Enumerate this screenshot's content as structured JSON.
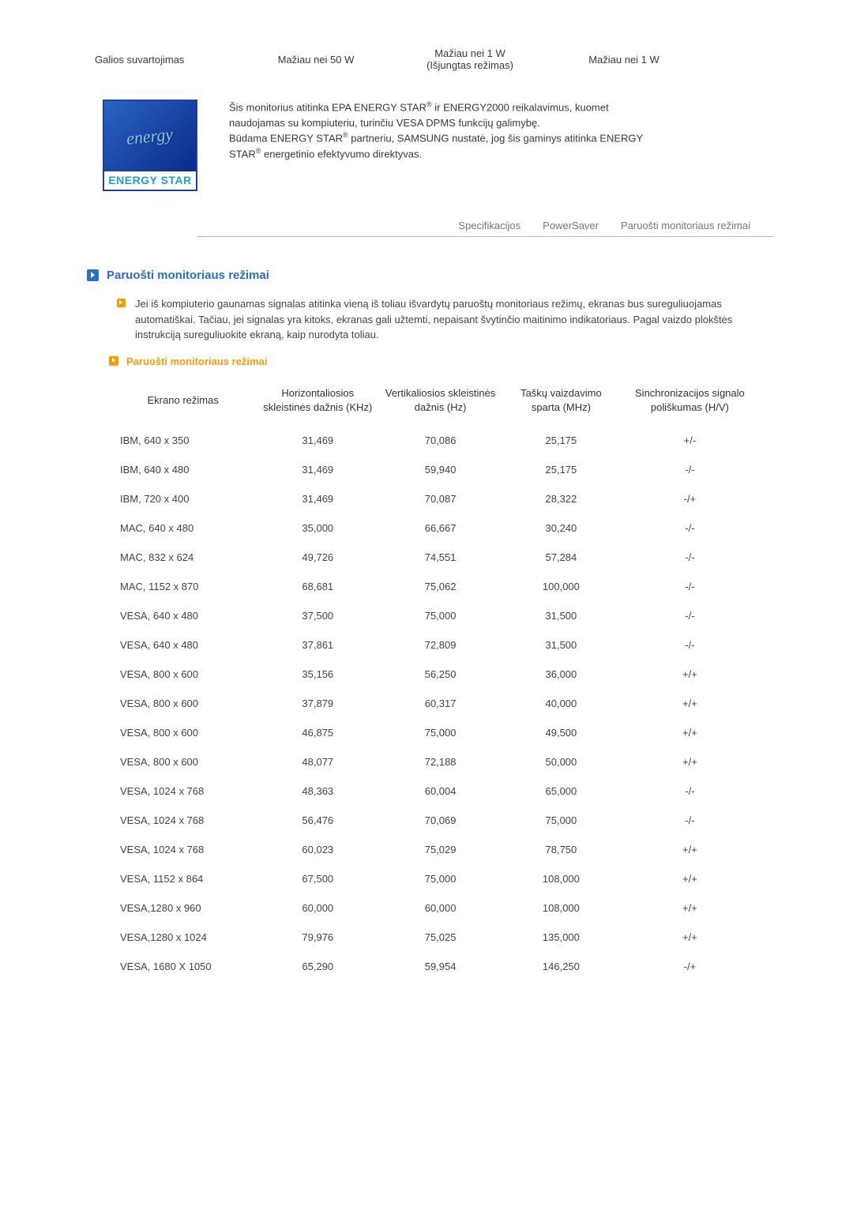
{
  "power_row": {
    "label": "Galios suvartojimas",
    "col1": "Mažiau nei 50 W",
    "col2_line1": "Mažiau nei 1 W",
    "col2_line2": "(Išjungtas režimas)",
    "col3": "Mažiau nei 1 W"
  },
  "energy_logo": {
    "script": "energy",
    "bar": "ENERGY STAR"
  },
  "energy_text": {
    "line1_a": "Šis monitorius atitinka EPA ENERGY STAR",
    "line1_b": " ir ENERGY2000 reikalavimus, kuomet naudojamas su kompiuteriu, turinčiu VESA DPMS funkcijų galimybę.",
    "line2_a": "Būdama ENERGY STAR",
    "line2_b": " partneriu, SAMSUNG nustatė, jog šis gaminys atitinka ENERGY STAR",
    "line2_c": " energetinio efektyvumo direktyvas."
  },
  "tabs": {
    "t1": "Specifikacijos",
    "t2": "PowerSaver",
    "t3": "Paruošti monitoriaus režimai"
  },
  "section_title": "Paruošti monitoriaus režimai",
  "intro": "Jei iš kompiuterio gaunamas signalas atitinka vieną iš toliau išvardytų paruoštų monitoriaus režimų, ekranas bus sureguliuojamas automatiškai. Tačiau, jei signalas yra kitoks, ekranas gali užtemti, nepaisant švytinčio maitinimo indikatoriaus. Pagal vaizdo plokštės instrukciją sureguliuokite ekraną, kaip nurodyta toliau.",
  "subsection_title": "Paruošti monitoriaus režimai",
  "table": {
    "headers": {
      "mode": "Ekrano režimas",
      "hfreq": "Horizontaliosios skleistinės dažnis (KHz)",
      "vfreq": "Vertikaliosios skleistinės dažnis (Hz)",
      "pixel": "Taškų vaizdavimo sparta (MHz)",
      "sync": "Sinchronizacijos signalo poliškumas (H/V)"
    },
    "rows": [
      {
        "mode": "IBM, 640 x 350",
        "h": "31,469",
        "v": "70,086",
        "p": "25,175",
        "s": "+/-"
      },
      {
        "mode": "IBM, 640 x 480",
        "h": "31,469",
        "v": "59,940",
        "p": "25,175",
        "s": "-/-"
      },
      {
        "mode": "IBM, 720 x 400",
        "h": "31,469",
        "v": "70,087",
        "p": "28,322",
        "s": "-/+"
      },
      {
        "mode": "MAC, 640 x 480",
        "h": "35,000",
        "v": "66,667",
        "p": "30,240",
        "s": "-/-"
      },
      {
        "mode": "MAC, 832 x 624",
        "h": "49,726",
        "v": "74,551",
        "p": "57,284",
        "s": "-/-"
      },
      {
        "mode": "MAC, 1152 x 870",
        "h": "68,681",
        "v": "75,062",
        "p": "100,000",
        "s": "-/-"
      },
      {
        "mode": "VESA, 640 x 480",
        "h": "37,500",
        "v": "75,000",
        "p": "31,500",
        "s": "-/-"
      },
      {
        "mode": "VESA, 640 x 480",
        "h": "37,861",
        "v": "72,809",
        "p": "31,500",
        "s": "-/-"
      },
      {
        "mode": "VESA, 800 x 600",
        "h": "35,156",
        "v": "56,250",
        "p": "36,000",
        "s": "+/+"
      },
      {
        "mode": "VESA, 800 x 600",
        "h": "37,879",
        "v": "60,317",
        "p": "40,000",
        "s": "+/+"
      },
      {
        "mode": "VESA, 800 x 600",
        "h": "46,875",
        "v": "75,000",
        "p": "49,500",
        "s": "+/+"
      },
      {
        "mode": "VESA, 800 x 600",
        "h": "48,077",
        "v": "72,188",
        "p": "50,000",
        "s": "+/+"
      },
      {
        "mode": "VESA, 1024 x 768",
        "h": "48,363",
        "v": "60,004",
        "p": "65,000",
        "s": "-/-"
      },
      {
        "mode": "VESA, 1024 x 768",
        "h": "56,476",
        "v": "70,069",
        "p": "75,000",
        "s": "-/-"
      },
      {
        "mode": "VESA, 1024 x 768",
        "h": "60,023",
        "v": "75,029",
        "p": "78,750",
        "s": "+/+"
      },
      {
        "mode": "VESA, 1152 x 864",
        "h": "67,500",
        "v": "75,000",
        "p": "108,000",
        "s": "+/+"
      },
      {
        "mode": "VESA,1280 x 960",
        "h": "60,000",
        "v": "60,000",
        "p": "108,000",
        "s": "+/+"
      },
      {
        "mode": "VESA,1280 x 1024",
        "h": "79,976",
        "v": "75,025",
        "p": "135,000",
        "s": "+/+"
      },
      {
        "mode": "VESA, 1680 X 1050",
        "h": "65,290",
        "v": "59,954",
        "p": "146,250",
        "s": "-/+"
      }
    ]
  }
}
